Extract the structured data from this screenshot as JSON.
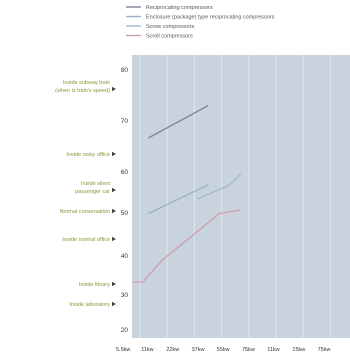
{
  "chart_data": {
    "type": "line",
    "title": "",
    "xlabel": "",
    "ylabel": "",
    "legend_position": "top",
    "colors": {
      "background": "#c8d3dd",
      "grid": "#dde4ea",
      "annotation_text": "#7f9a3a",
      "reciprocating": "#7d8595",
      "enclosure": "#9aaec4",
      "screw": "#a4b8cc",
      "scroll": "#cf9cb5"
    },
    "legend": [
      "Reciprocating compressors",
      "Enclosure (package) type reciprocating compressors",
      "Screw compressors",
      "Scroll compressors"
    ],
    "y_ticks": [
      "80",
      "70",
      "60",
      "50",
      "40",
      "30",
      "20"
    ],
    "ylim": [
      15,
      85
    ],
    "x_ticks": [
      "5.5kw",
      "11kw",
      "22kw",
      "37kw",
      "55kw",
      "75kw",
      "11kw",
      "15kw",
      "75kw"
    ],
    "annotations": [
      "Inside subway train\n(when is train's speed)",
      "Inside noisy office",
      "Inside silent\npassenger car",
      "Normal conversation",
      "Inside normal office",
      "Inside library",
      "Inside laboratory"
    ],
    "series": [
      {
        "name": "Reciprocating compressors",
        "x": [
          0.6,
          2.8
        ],
        "y": [
          65,
          74
        ]
      },
      {
        "name": "Enclosure (package) type reciprocating compressors",
        "x": [
          0.6,
          2.8
        ],
        "y": [
          44,
          52
        ]
      },
      {
        "name": "Screw compressors",
        "x": [
          2.4,
          3.6,
          4.0
        ],
        "y": [
          48,
          52,
          55
        ]
      },
      {
        "name": "Scroll compressors",
        "x": [
          0.0,
          0.4,
          1.1,
          2.4,
          3.2,
          4.0
        ],
        "y": [
          25,
          25,
          31,
          39,
          44,
          45
        ]
      }
    ]
  }
}
